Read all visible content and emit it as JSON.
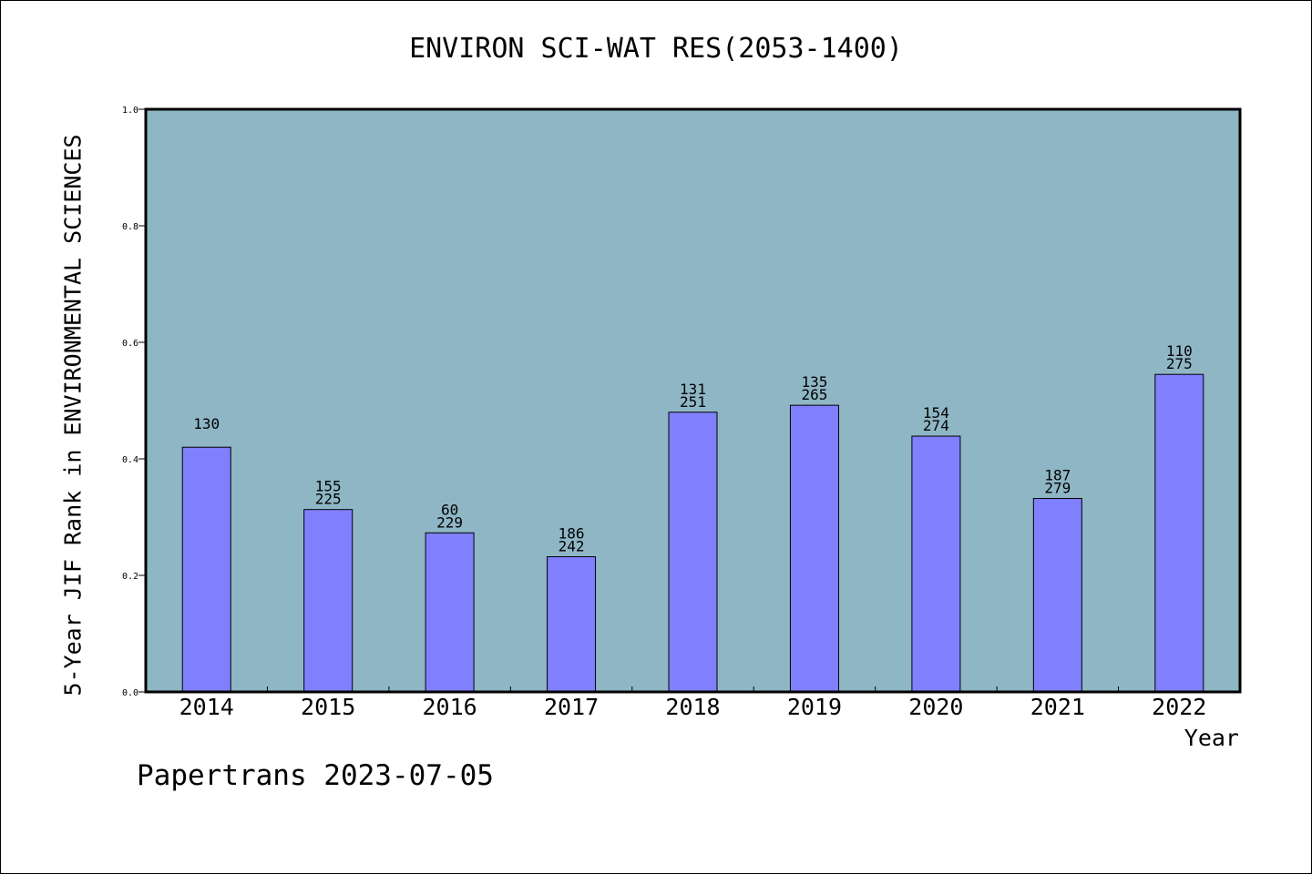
{
  "chart_data": {
    "type": "bar",
    "title": "ENVIRON SCI-WAT RES(2053-1400)",
    "xlabel": "Year",
    "ylabel": "5-Year JIF Rank in ENVIRONMENTAL SCIENCES",
    "ylim": [
      0,
      1.0
    ],
    "yticks": [
      "0.0",
      "0.2",
      "0.4",
      "0.6",
      "0.8",
      "1.0"
    ],
    "grid": false,
    "categories": [
      "2014",
      "2015",
      "2016",
      "2017",
      "2018",
      "2019",
      "2020",
      "2021",
      "2022"
    ],
    "values": [
      0.42,
      0.313,
      0.273,
      0.232,
      0.48,
      0.492,
      0.439,
      0.332,
      0.545
    ],
    "bar_labels": [
      [
        "130"
      ],
      [
        "155",
        "225"
      ],
      [
        "60",
        "229"
      ],
      [
        "186",
        "242"
      ],
      [
        "131",
        "251"
      ],
      [
        "135",
        "265"
      ],
      [
        "154",
        "274"
      ],
      [
        "187",
        "279"
      ],
      [
        "110",
        "275"
      ]
    ],
    "colors": {
      "plot_background": "#8fb6c5",
      "bar_fill": "#8080ff",
      "bar_stroke": "#000000"
    }
  },
  "footer": "Papertrans 2023-07-05"
}
